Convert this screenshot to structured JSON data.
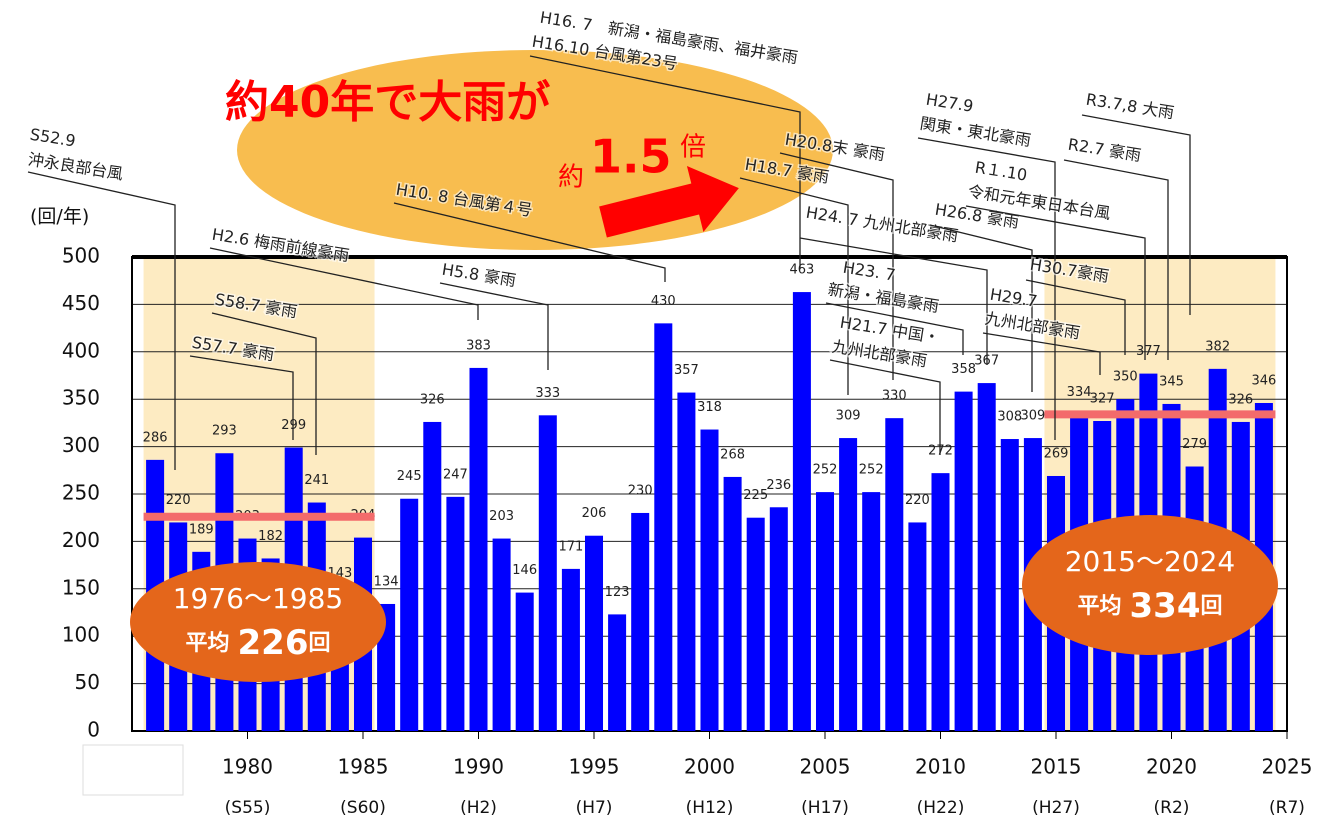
{
  "chart_data": {
    "type": "bar",
    "headline": {
      "main": "約40年で大雨が",
      "prefix": "約",
      "ratio": "1.5",
      "suffix": "倍"
    },
    "y_axis_label": "(回/年)",
    "x": [
      1976,
      1977,
      1978,
      1979,
      1980,
      1981,
      1982,
      1983,
      1984,
      1985,
      1986,
      1987,
      1988,
      1989,
      1990,
      1991,
      1992,
      1993,
      1994,
      1995,
      1996,
      1997,
      1998,
      1999,
      2000,
      2001,
      2002,
      2003,
      2004,
      2005,
      2006,
      2007,
      2008,
      2009,
      2010,
      2011,
      2012,
      2013,
      2014,
      2015,
      2016,
      2017,
      2018,
      2019,
      2020,
      2021,
      2022,
      2023,
      2024
    ],
    "values": [
      286,
      220,
      189,
      293,
      203,
      182,
      299,
      241,
      143,
      204,
      134,
      245,
      326,
      247,
      383,
      203,
      146,
      333,
      171,
      206,
      123,
      230,
      430,
      357,
      318,
      268,
      225,
      236,
      463,
      252,
      309,
      252,
      330,
      220,
      272,
      358,
      367,
      308,
      309,
      269,
      334,
      327,
      350,
      377,
      345,
      279,
      382,
      326,
      346
    ],
    "color": "#0000ff",
    "xlim": [
      1975,
      2025
    ],
    "xticks": [
      1980,
      1985,
      1990,
      1995,
      2000,
      2005,
      2010,
      2015,
      2020,
      2025
    ],
    "era_labels": [
      "(S55)",
      "(S60)",
      "(H2)",
      "(H7)",
      "(H12)",
      "(H17)",
      "(H22)",
      "(H27)",
      "(R2)",
      "(R7)"
    ],
    "ylim": [
      0,
      500
    ],
    "yticks": [
      0,
      50,
      100,
      150,
      200,
      250,
      300,
      350,
      400,
      450,
      500
    ],
    "grid": true,
    "averages": [
      {
        "period": "1976～1985",
        "label": "平均",
        "value": 226,
        "unit": "回",
        "color": "#f36b6b"
      },
      {
        "period": "2015～2024",
        "label": "平均",
        "value": 334,
        "unit": "回",
        "color": "#f36b6b"
      }
    ],
    "annotations": [
      [
        "S52.9",
        "沖永良部台風"
      ],
      [
        "S57.7 豪雨"
      ],
      [
        "S58.7 豪雨"
      ],
      [
        "H2.6 梅雨前線豪雨"
      ],
      [
        "H5.8 豪雨"
      ],
      [
        "H10. 8 台風第４号"
      ],
      [
        "H16. 7　新潟・福島豪雨、福井豪雨",
        "H16.10 台風第23号"
      ],
      [
        "H18.7 豪雨"
      ],
      [
        "H20.8末 豪雨"
      ],
      [
        "H21.7 中国・",
        "九州北部豪雨"
      ],
      [
        "H23. 7",
        "新潟・福島豪雨"
      ],
      [
        "H24. 7 九州北部豪雨"
      ],
      [
        "H26.8 豪雨"
      ],
      [
        "H27.9",
        "関東・東北豪雨"
      ],
      [
        "R１.10",
        "令和元年東日本台風"
      ],
      [
        "H29.7",
        "九州北部豪雨"
      ],
      [
        "H30.7豪雨"
      ],
      [
        "R2.7 豪雨"
      ],
      [
        "R3.7,8 大雨"
      ]
    ]
  }
}
